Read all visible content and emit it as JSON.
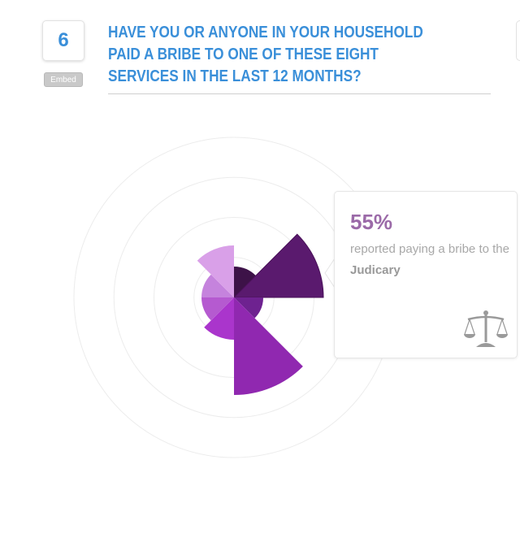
{
  "question": {
    "number": "6",
    "embed_label": "Embed",
    "title": "HAVE YOU OR ANYONE IN YOUR HOUSEHOLD PAID A BRIBE TO ONE OF THESE EIGHT SERVICES IN THE LAST 12 MONTHS?"
  },
  "chart_data": {
    "type": "polar-area",
    "unit": "%",
    "rlim": [
      0,
      100
    ],
    "rings": [
      25,
      50,
      75,
      100
    ],
    "grid": true,
    "values": [
      19,
      55,
      18,
      60,
      26,
      20,
      20,
      32
    ],
    "colors": [
      "#3d1248",
      "#5a1a6e",
      "#6e2290",
      "#9028b0",
      "#aa35cc",
      "#b55ad0",
      "#c583dd",
      "#d9a0e8"
    ],
    "highlighted_index": 1
  },
  "tooltip": {
    "value": "55%",
    "text_prefix": "reported paying a bribe to the",
    "category": "Judicary",
    "icon": "scales-of-justice-icon",
    "value_color": "#9b6aa8"
  }
}
